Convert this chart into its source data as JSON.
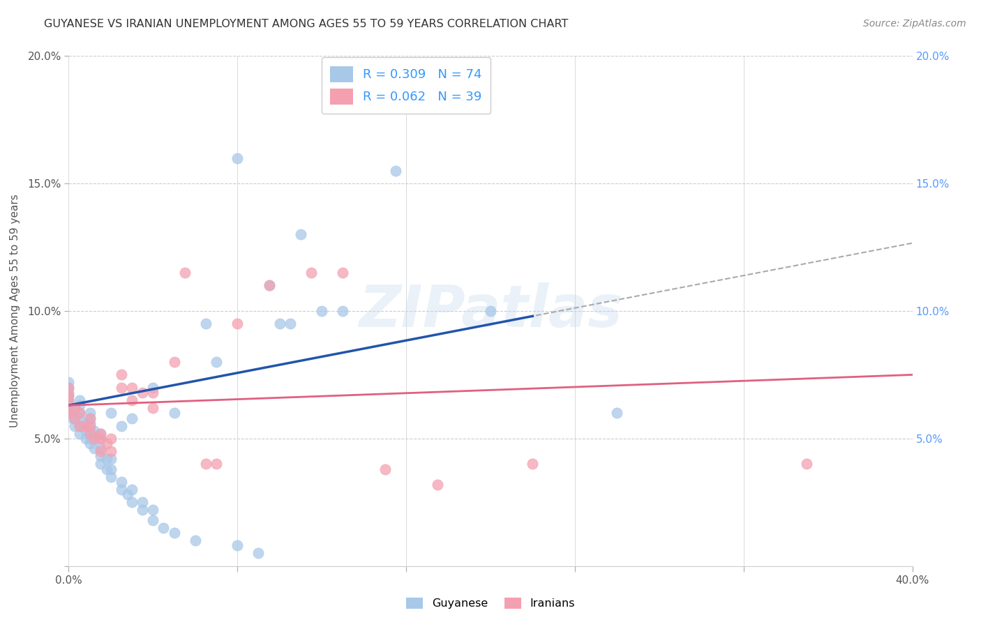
{
  "title": "GUYANESE VS IRANIAN UNEMPLOYMENT AMONG AGES 55 TO 59 YEARS CORRELATION CHART",
  "source": "Source: ZipAtlas.com",
  "ylabel": "Unemployment Among Ages 55 to 59 years",
  "xlim": [
    0.0,
    0.4
  ],
  "ylim": [
    0.0,
    0.2
  ],
  "xtick_positions": [
    0.0,
    0.08,
    0.16,
    0.24,
    0.32,
    0.4
  ],
  "ytick_positions": [
    0.0,
    0.05,
    0.1,
    0.15,
    0.2
  ],
  "xtick_labels": [
    "0.0%",
    "",
    "",
    "",
    "",
    "40.0%"
  ],
  "ytick_labels_left": [
    "",
    "5.0%",
    "10.0%",
    "15.0%",
    "20.0%"
  ],
  "ytick_labels_right": [
    "",
    "5.0%",
    "10.0%",
    "15.0%",
    "20.0%"
  ],
  "guyanese_color": "#a8c8e8",
  "iranian_color": "#f4a0b0",
  "guyanese_R": 0.309,
  "guyanese_N": 74,
  "iranian_R": 0.062,
  "iranian_N": 39,
  "guyanese_line_color": "#2255aa",
  "iranian_line_color": "#e06080",
  "trend_ext_color": "#aaaaaa",
  "background_color": "#ffffff",
  "grid_color": "#cccccc",
  "title_color": "#333333",
  "right_tick_color": "#5599ff",
  "watermark": "ZIPatlas",
  "legend_text_color": "#3399ff",
  "guyanese_x": [
    0.0,
    0.0,
    0.0,
    0.0,
    0.0,
    0.0,
    0.0,
    0.0,
    0.002,
    0.002,
    0.003,
    0.003,
    0.003,
    0.003,
    0.005,
    0.005,
    0.005,
    0.005,
    0.005,
    0.005,
    0.008,
    0.008,
    0.008,
    0.01,
    0.01,
    0.01,
    0.01,
    0.01,
    0.01,
    0.012,
    0.012,
    0.012,
    0.015,
    0.015,
    0.015,
    0.015,
    0.015,
    0.018,
    0.018,
    0.02,
    0.02,
    0.02,
    0.02,
    0.025,
    0.025,
    0.025,
    0.028,
    0.03,
    0.03,
    0.03,
    0.035,
    0.035,
    0.04,
    0.04,
    0.04,
    0.045,
    0.05,
    0.05,
    0.06,
    0.065,
    0.07,
    0.08,
    0.08,
    0.09,
    0.095,
    0.1,
    0.105,
    0.11,
    0.12,
    0.13,
    0.155,
    0.17,
    0.2,
    0.26
  ],
  "guyanese_y": [
    0.06,
    0.062,
    0.063,
    0.065,
    0.067,
    0.068,
    0.07,
    0.072,
    0.058,
    0.06,
    0.055,
    0.058,
    0.06,
    0.062,
    0.052,
    0.055,
    0.058,
    0.06,
    0.063,
    0.065,
    0.05,
    0.053,
    0.056,
    0.048,
    0.05,
    0.053,
    0.056,
    0.058,
    0.06,
    0.046,
    0.05,
    0.053,
    0.04,
    0.043,
    0.046,
    0.05,
    0.052,
    0.038,
    0.042,
    0.035,
    0.038,
    0.042,
    0.06,
    0.03,
    0.033,
    0.055,
    0.028,
    0.025,
    0.03,
    0.058,
    0.022,
    0.025,
    0.018,
    0.022,
    0.07,
    0.015,
    0.013,
    0.06,
    0.01,
    0.095,
    0.08,
    0.008,
    0.16,
    0.005,
    0.11,
    0.095,
    0.095,
    0.13,
    0.1,
    0.1,
    0.155,
    0.18,
    0.1,
    0.06
  ],
  "iranian_x": [
    0.0,
    0.0,
    0.0,
    0.0,
    0.0,
    0.003,
    0.003,
    0.005,
    0.005,
    0.008,
    0.01,
    0.01,
    0.01,
    0.012,
    0.015,
    0.015,
    0.015,
    0.018,
    0.02,
    0.02,
    0.025,
    0.025,
    0.03,
    0.03,
    0.035,
    0.04,
    0.04,
    0.05,
    0.055,
    0.065,
    0.07,
    0.08,
    0.095,
    0.115,
    0.13,
    0.15,
    0.175,
    0.22,
    0.35
  ],
  "iranian_y": [
    0.06,
    0.062,
    0.065,
    0.067,
    0.07,
    0.058,
    0.062,
    0.055,
    0.06,
    0.055,
    0.052,
    0.055,
    0.058,
    0.05,
    0.045,
    0.05,
    0.052,
    0.048,
    0.045,
    0.05,
    0.07,
    0.075,
    0.065,
    0.07,
    0.068,
    0.062,
    0.068,
    0.08,
    0.115,
    0.04,
    0.04,
    0.095,
    0.11,
    0.115,
    0.115,
    0.038,
    0.032,
    0.04,
    0.04
  ]
}
